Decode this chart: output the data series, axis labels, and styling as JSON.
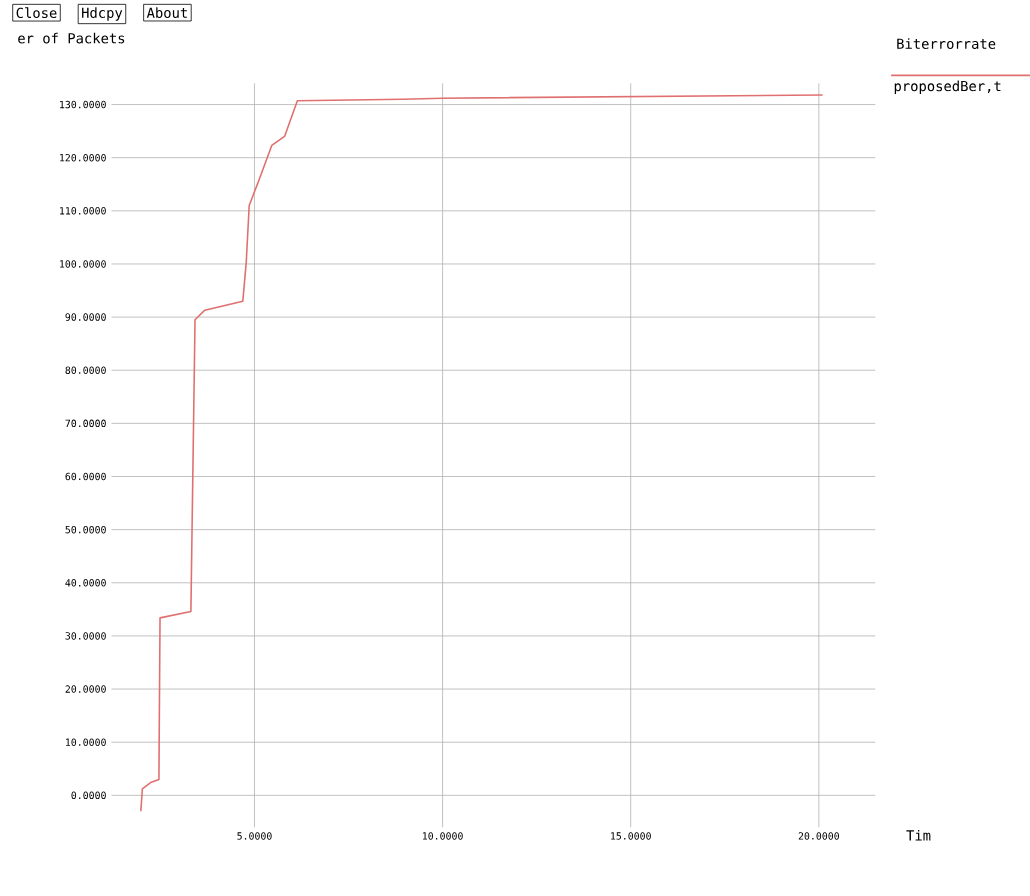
{
  "chart_data": {
    "type": "line",
    "ylabel": "er of Packets",
    "xlabel": "Tim",
    "legend_title": "Biterrorrate",
    "annotations": [
      "Close",
      "Hdcpy",
      "About"
    ],
    "x": [
      1.98,
      2.02,
      2.24,
      2.46,
      2.49,
      3.31,
      3.42,
      3.68,
      4.69,
      4.78,
      4.86,
      5.12,
      5.46,
      5.8,
      6.14,
      8.93,
      10,
      20.1
    ],
    "series": [
      {
        "name": "proposedBer,t",
        "color": "#e07070",
        "values": [
          -3,
          1.2,
          2.4,
          3,
          33.4,
          34.6,
          89.5,
          91.3,
          93,
          100.2,
          111,
          115.8,
          122.3,
          124,
          130.7,
          131,
          131.2,
          131.8
        ]
      }
    ],
    "xlim": [
      1.2,
      21.5
    ],
    "ylim": [
      -6,
      134
    ],
    "xticks": [
      {
        "value": 5,
        "label": "5.0000"
      },
      {
        "value": 10,
        "label": "10.0000"
      },
      {
        "value": 15,
        "label": "15.0000"
      },
      {
        "value": 20,
        "label": "20.0000"
      }
    ],
    "yticks": [
      {
        "value": 0,
        "label": "0.0000"
      },
      {
        "value": 10,
        "label": "10.0000"
      },
      {
        "value": 20,
        "label": "20.0000"
      },
      {
        "value": 30,
        "label": "30.0000"
      },
      {
        "value": 40,
        "label": "40.0000"
      },
      {
        "value": 50,
        "label": "50.0000"
      },
      {
        "value": 60,
        "label": "60.0000"
      },
      {
        "value": 70,
        "label": "70.0000"
      },
      {
        "value": 80,
        "label": "80.0000"
      },
      {
        "value": 90,
        "label": "90.0000"
      },
      {
        "value": 100,
        "label": "100.0000"
      },
      {
        "value": 110,
        "label": "110.0000"
      },
      {
        "value": 120,
        "label": "120.0000"
      },
      {
        "value": 130,
        "label": "130.0000"
      }
    ],
    "grid": true,
    "legend": "top right",
    "marker": "none",
    "line_style": "solid"
  }
}
